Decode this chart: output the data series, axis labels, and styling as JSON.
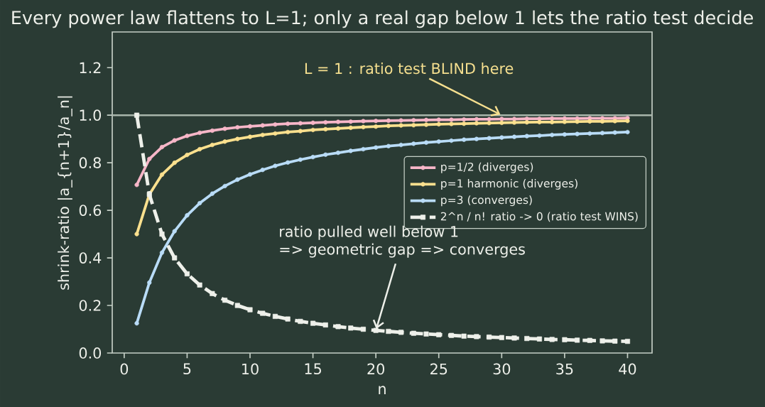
{
  "chart_data": {
    "type": "line",
    "title": "Every power law flattens to L=1; only a real gap below 1 lets the ratio test decide",
    "xlabel": "n",
    "ylabel": "shrink-ratio  |a_{n+1}/a_n|",
    "x": [
      1,
      2,
      3,
      4,
      5,
      6,
      7,
      8,
      9,
      10,
      11,
      12,
      13,
      14,
      15,
      16,
      17,
      18,
      19,
      20,
      21,
      22,
      23,
      24,
      25,
      26,
      27,
      28,
      29,
      30,
      31,
      32,
      33,
      34,
      35,
      36,
      37,
      38,
      39,
      40
    ],
    "series": [
      {
        "name": "p=1/2  (diverges)",
        "color": "#f7b6c8",
        "marker": "circle",
        "line_style": "solid",
        "values": [
          0.707,
          0.816,
          0.866,
          0.894,
          0.913,
          0.926,
          0.935,
          0.943,
          0.949,
          0.953,
          0.957,
          0.961,
          0.964,
          0.966,
          0.968,
          0.97,
          0.972,
          0.973,
          0.975,
          0.976,
          0.977,
          0.978,
          0.979,
          0.98,
          0.981,
          0.981,
          0.982,
          0.983,
          0.983,
          0.984,
          0.984,
          0.985,
          0.985,
          0.986,
          0.986,
          0.986,
          0.987,
          0.987,
          0.987,
          0.988
        ]
      },
      {
        "name": "p=1  harmonic (diverges)",
        "color": "#fbe08e",
        "marker": "circle",
        "line_style": "solid",
        "values": [
          0.5,
          0.667,
          0.75,
          0.8,
          0.833,
          0.857,
          0.875,
          0.889,
          0.9,
          0.909,
          0.917,
          0.923,
          0.929,
          0.933,
          0.938,
          0.941,
          0.944,
          0.947,
          0.95,
          0.952,
          0.955,
          0.957,
          0.958,
          0.96,
          0.962,
          0.963,
          0.964,
          0.966,
          0.967,
          0.968,
          0.969,
          0.97,
          0.971,
          0.971,
          0.972,
          0.973,
          0.974,
          0.974,
          0.975,
          0.976
        ]
      },
      {
        "name": "p=3  (converges)",
        "color": "#b9dcf7",
        "marker": "circle",
        "line_style": "solid",
        "values": [
          0.125,
          0.296,
          0.422,
          0.512,
          0.579,
          0.63,
          0.67,
          0.702,
          0.729,
          0.751,
          0.77,
          0.787,
          0.801,
          0.813,
          0.824,
          0.834,
          0.842,
          0.85,
          0.857,
          0.864,
          0.87,
          0.875,
          0.88,
          0.885,
          0.889,
          0.893,
          0.897,
          0.9,
          0.903,
          0.906,
          0.909,
          0.912,
          0.914,
          0.917,
          0.919,
          0.921,
          0.923,
          0.925,
          0.927,
          0.929
        ]
      },
      {
        "name": "2^n / n!  ratio -> 0  (ratio test WINS)",
        "color": "#eef0ea",
        "marker": "square",
        "line_style": "dashed",
        "values": [
          1,
          0.667,
          0.5,
          0.4,
          0.333,
          0.286,
          0.25,
          0.222,
          0.2,
          0.182,
          0.167,
          0.154,
          0.143,
          0.133,
          0.125,
          0.118,
          0.111,
          0.105,
          0.1,
          0.095,
          0.091,
          0.087,
          0.083,
          0.08,
          0.077,
          0.074,
          0.071,
          0.069,
          0.067,
          0.065,
          0.063,
          0.061,
          0.059,
          0.057,
          0.056,
          0.054,
          0.053,
          0.051,
          0.05,
          0.049
        ]
      }
    ],
    "xlim": [
      -0.95,
      41.95
    ],
    "ylim": [
      0,
      1.35
    ],
    "xticks": [
      0,
      5,
      10,
      15,
      20,
      25,
      30,
      35,
      40
    ],
    "yticks": [
      {
        "value": 0,
        "label": "0.0"
      },
      {
        "value": 0.2,
        "label": "0.2"
      },
      {
        "value": 0.4,
        "label": "0.4"
      },
      {
        "value": 0.6,
        "label": "0.6"
      },
      {
        "value": 0.8,
        "label": "0.8"
      },
      {
        "value": 1,
        "label": "1.0"
      },
      {
        "value": 1.2,
        "label": "1.2"
      }
    ],
    "ref_lines": [
      {
        "axis": "y",
        "value": 1,
        "color": "#a8b5aa",
        "line_style": "solid"
      }
    ],
    "annotations": [
      {
        "text": "L = 1  : ratio test BLIND here",
        "x": 30,
        "y": 1
      },
      {
        "text": "ratio pulled well below 1\n=> geometric gap => converges",
        "x": 20,
        "y": 0.095
      }
    ],
    "legend": "right"
  }
}
